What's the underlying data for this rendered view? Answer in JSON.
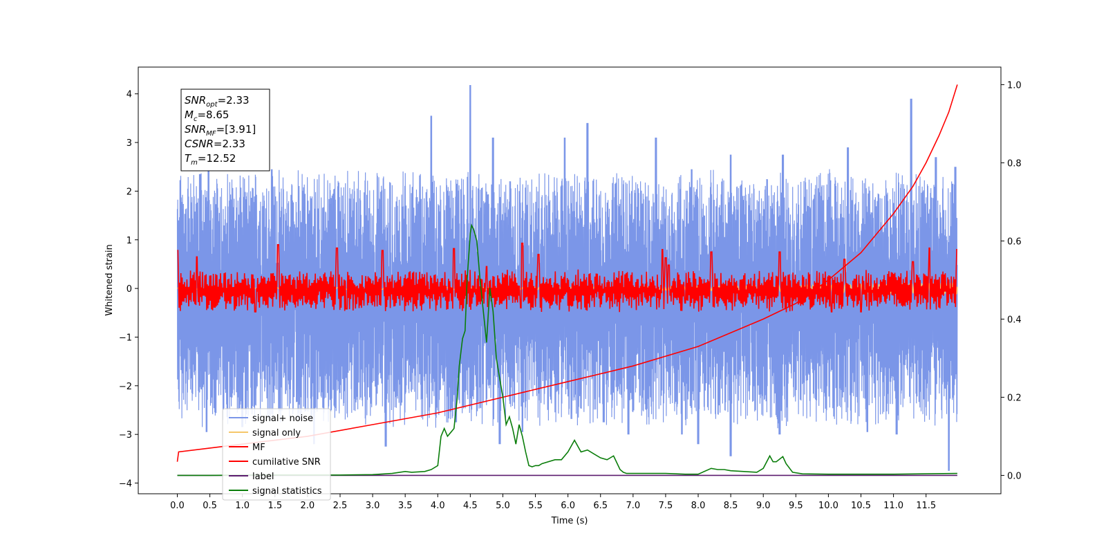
{
  "chart_data": {
    "type": "line",
    "xlabel": "Time (s)",
    "ylabel": "Whitened strain",
    "y2label": "",
    "xlim": [
      -0.6,
      12.65
    ],
    "ylim": [
      -4.22,
      4.55
    ],
    "y2lim": [
      -0.047,
      1.045
    ],
    "x_ticks": [
      "0.0",
      "0.5",
      "1.0",
      "1.5",
      "2.0",
      "2.5",
      "3.0",
      "3.5",
      "4.0",
      "4.5",
      "5.0",
      "5.5",
      "6.0",
      "6.5",
      "7.0",
      "7.5",
      "8.0",
      "8.5",
      "9.0",
      "9.5",
      "10.0",
      "10.5",
      "11.0",
      "11.5"
    ],
    "y_ticks": [
      "4",
      "3",
      "2",
      "1",
      "0",
      "−1",
      "−2",
      "−3",
      "−4"
    ],
    "y_tick_values": [
      4,
      3,
      2,
      1,
      0,
      -1,
      -2,
      -3,
      -4
    ],
    "y2_ticks": [
      "1.0",
      "0.8",
      "0.6",
      "0.4",
      "0.2",
      "0.0"
    ],
    "y2_tick_values": [
      1.0,
      0.8,
      0.6,
      0.4,
      0.2,
      0.0
    ],
    "legend_position": "lower-left",
    "grid": false,
    "stats_box": {
      "position": "top-left",
      "lines": [
        {
          "base": "SNR",
          "sub": "opt",
          "value": "=2.33"
        },
        {
          "base": "M",
          "sub": "c",
          "value": "=8.65"
        },
        {
          "base": "SNR",
          "sub": "MF",
          "value": "=[3.91]"
        },
        {
          "base": "CSNR",
          "sub": "",
          "value": "=2.33"
        },
        {
          "base": "T",
          "sub": "m",
          "value": "=12.52"
        }
      ]
    },
    "series": [
      {
        "name": "signal+ noise",
        "color": "#7b96e8",
        "axis": "left",
        "style": "noise",
        "x_range": [
          0,
          11.98
        ],
        "amplitude": 2.5,
        "peaks": [
          [
            0.02,
            1.4
          ],
          [
            0.35,
            2.35
          ],
          [
            0.48,
            2.7
          ],
          [
            1.45,
            2.45
          ],
          [
            3.9,
            3.55
          ],
          [
            4.5,
            4.18
          ],
          [
            4.85,
            3.1
          ],
          [
            5.95,
            3.1
          ],
          [
            6.3,
            3.4
          ],
          [
            7.35,
            3.1
          ],
          [
            7.9,
            2.45
          ],
          [
            8.5,
            2.75
          ],
          [
            9.3,
            2.75
          ],
          [
            10.3,
            2.9
          ],
          [
            11.27,
            3.9
          ],
          [
            11.65,
            2.7
          ],
          [
            11.95,
            2.5
          ]
        ],
        "troughs": [
          [
            0.45,
            -2.95
          ],
          [
            1.0,
            -2.85
          ],
          [
            2.1,
            -3.2
          ],
          [
            3.2,
            -3.25
          ],
          [
            4.28,
            -2.75
          ],
          [
            4.95,
            -3.2
          ],
          [
            5.3,
            -2.95
          ],
          [
            6.55,
            -2.75
          ],
          [
            6.93,
            -3.0
          ],
          [
            7.75,
            -3.0
          ],
          [
            8.0,
            -3.2
          ],
          [
            8.5,
            -3.45
          ],
          [
            9.25,
            -3.0
          ],
          [
            10.6,
            -2.95
          ],
          [
            11.05,
            -3.0
          ],
          [
            11.85,
            -3.75
          ]
        ]
      },
      {
        "name": "signal only",
        "color": "#f5c76a",
        "axis": "left",
        "style": "chirp",
        "x_range": [
          0,
          11.98
        ]
      },
      {
        "name": "MF",
        "color": "#ff0000",
        "axis": "left",
        "style": "mf",
        "x_range": [
          0,
          11.98
        ],
        "amplitude": 0.45,
        "peaks": [
          [
            0.0,
            0.78
          ],
          [
            0.3,
            0.65
          ],
          [
            1.55,
            0.9
          ],
          [
            2.45,
            0.83
          ],
          [
            3.15,
            0.78
          ],
          [
            4.25,
            0.82
          ],
          [
            4.75,
            0.45
          ],
          [
            5.3,
            0.93
          ],
          [
            5.55,
            0.7
          ],
          [
            7.45,
            0.8
          ],
          [
            7.5,
            0.63
          ],
          [
            7.55,
            0.48
          ],
          [
            8.2,
            0.75
          ],
          [
            9.25,
            0.75
          ],
          [
            10.25,
            0.6
          ],
          [
            11.3,
            0.55
          ],
          [
            11.55,
            0.83
          ],
          [
            11.98,
            0.8
          ]
        ],
        "troughs": [
          [
            0.0,
            -0.75
          ],
          [
            1.2,
            -0.48
          ],
          [
            2.6,
            -0.42
          ],
          [
            5.28,
            -0.4
          ],
          [
            7.8,
            -0.3
          ],
          [
            10.05,
            -0.48
          ],
          [
            10.5,
            -0.48
          ]
        ]
      },
      {
        "name": "cumilative SNR",
        "color": "#ff0000",
        "axis": "right",
        "x": [
          0.0,
          0.02,
          0.5,
          1.0,
          2.0,
          3.0,
          4.0,
          5.0,
          6.0,
          7.0,
          8.0,
          9.0,
          9.5,
          10.0,
          10.5,
          11.0,
          11.3,
          11.5,
          11.7,
          11.85,
          11.98
        ],
        "y": [
          0.035,
          0.06,
          0.07,
          0.08,
          0.1,
          0.13,
          0.16,
          0.2,
          0.24,
          0.28,
          0.33,
          0.4,
          0.44,
          0.5,
          0.57,
          0.67,
          0.74,
          0.8,
          0.87,
          0.93,
          1.0
        ]
      },
      {
        "name": "label",
        "color": "#5b1a6e",
        "axis": "right",
        "x": [
          0.0,
          11.98
        ],
        "y": [
          0.0,
          0.0
        ]
      },
      {
        "name": "signal statistics",
        "color": "#0a7d0a",
        "axis": "right",
        "x": [
          0.0,
          0.5,
          1.0,
          1.5,
          2.0,
          2.5,
          3.0,
          3.3,
          3.5,
          3.6,
          3.8,
          3.9,
          4.0,
          4.05,
          4.1,
          4.15,
          4.2,
          4.25,
          4.3,
          4.33,
          4.38,
          4.42,
          4.45,
          4.5,
          4.52,
          4.55,
          4.6,
          4.65,
          4.7,
          4.75,
          4.8,
          4.85,
          4.9,
          4.95,
          5.0,
          5.05,
          5.1,
          5.15,
          5.2,
          5.25,
          5.3,
          5.35,
          5.4,
          5.45,
          5.5,
          5.55,
          5.6,
          5.8,
          5.9,
          6.0,
          6.1,
          6.2,
          6.3,
          6.4,
          6.5,
          6.6,
          6.7,
          6.8,
          6.85,
          6.9,
          7.0,
          7.2,
          7.5,
          7.8,
          8.0,
          8.2,
          8.3,
          8.4,
          8.5,
          8.7,
          8.9,
          9.0,
          9.1,
          9.15,
          9.2,
          9.3,
          9.35,
          9.45,
          9.6,
          10.0,
          11.0,
          11.98
        ],
        "y": [
          0.0,
          0.0,
          0.001,
          0.001,
          0.001,
          0.001,
          0.002,
          0.005,
          0.01,
          0.008,
          0.01,
          0.015,
          0.025,
          0.1,
          0.12,
          0.1,
          0.11,
          0.12,
          0.2,
          0.28,
          0.35,
          0.37,
          0.5,
          0.62,
          0.64,
          0.63,
          0.6,
          0.5,
          0.42,
          0.34,
          0.48,
          0.42,
          0.3,
          0.25,
          0.2,
          0.13,
          0.15,
          0.12,
          0.08,
          0.13,
          0.1,
          0.06,
          0.025,
          0.022,
          0.025,
          0.025,
          0.03,
          0.04,
          0.04,
          0.06,
          0.09,
          0.06,
          0.065,
          0.055,
          0.045,
          0.04,
          0.05,
          0.015,
          0.008,
          0.005,
          0.005,
          0.005,
          0.005,
          0.003,
          0.003,
          0.018,
          0.015,
          0.015,
          0.012,
          0.01,
          0.008,
          0.018,
          0.05,
          0.035,
          0.035,
          0.048,
          0.03,
          0.008,
          0.004,
          0.003,
          0.003,
          0.005
        ]
      }
    ]
  }
}
